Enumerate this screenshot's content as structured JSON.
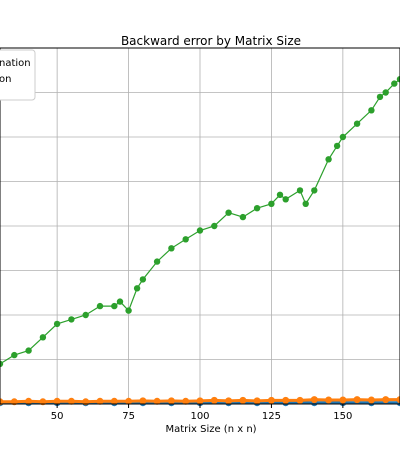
{
  "chart_data": {
    "type": "line",
    "title": "Backward error by Matrix Size",
    "xlabel": "Matrix Size (n x n)",
    "ylabel": "",
    "xlim": [
      30,
      170
    ],
    "ylim": [
      0,
      8
    ],
    "grid": true,
    "legend_placement": "top-left",
    "x_ticks": [
      50,
      75,
      100,
      125,
      150
    ],
    "series": [
      {
        "name": "nation",
        "color": "#1f77b4",
        "points": [
          [
            30,
            0.03
          ],
          [
            40,
            0.03
          ],
          [
            50,
            0.03
          ],
          [
            60,
            0.03
          ],
          [
            70,
            0.03
          ],
          [
            80,
            0.03
          ],
          [
            90,
            0.03
          ],
          [
            100,
            0.03
          ],
          [
            110,
            0.03
          ],
          [
            120,
            0.03
          ],
          [
            130,
            0.03
          ],
          [
            140,
            0.03
          ],
          [
            150,
            0.03
          ],
          [
            160,
            0.03
          ],
          [
            170,
            0.03
          ]
        ]
      },
      {
        "name": "on",
        "color": "#ff7f0e",
        "points": [
          [
            30,
            0.05
          ],
          [
            35,
            0.05
          ],
          [
            40,
            0.06
          ],
          [
            45,
            0.05
          ],
          [
            50,
            0.06
          ],
          [
            55,
            0.06
          ],
          [
            60,
            0.05
          ],
          [
            65,
            0.06
          ],
          [
            70,
            0.06
          ],
          [
            75,
            0.06
          ],
          [
            80,
            0.07
          ],
          [
            85,
            0.06
          ],
          [
            90,
            0.07
          ],
          [
            95,
            0.06
          ],
          [
            100,
            0.07
          ],
          [
            105,
            0.08
          ],
          [
            110,
            0.07
          ],
          [
            115,
            0.08
          ],
          [
            120,
            0.07
          ],
          [
            125,
            0.08
          ],
          [
            130,
            0.08
          ],
          [
            135,
            0.08
          ],
          [
            140,
            0.1
          ],
          [
            145,
            0.09
          ],
          [
            150,
            0.09
          ],
          [
            155,
            0.1
          ],
          [
            160,
            0.09
          ],
          [
            165,
            0.1
          ],
          [
            170,
            0.1
          ]
        ]
      },
      {
        "name": "",
        "color": "#2ca02c",
        "points": [
          [
            30,
            0.9
          ],
          [
            35,
            1.1
          ],
          [
            40,
            1.2
          ],
          [
            45,
            1.5
          ],
          [
            50,
            1.8
          ],
          [
            55,
            1.9
          ],
          [
            60,
            2.0
          ],
          [
            65,
            2.2
          ],
          [
            70,
            2.2
          ],
          [
            72,
            2.3
          ],
          [
            75,
            2.1
          ],
          [
            78,
            2.6
          ],
          [
            80,
            2.8
          ],
          [
            85,
            3.2
          ],
          [
            90,
            3.5
          ],
          [
            95,
            3.7
          ],
          [
            100,
            3.9
          ],
          [
            105,
            4.0
          ],
          [
            110,
            4.3
          ],
          [
            115,
            4.2
          ],
          [
            120,
            4.4
          ],
          [
            125,
            4.5
          ],
          [
            128,
            4.7
          ],
          [
            130,
            4.6
          ],
          [
            135,
            4.8
          ],
          [
            137,
            4.5
          ],
          [
            140,
            4.8
          ],
          [
            145,
            5.5
          ],
          [
            148,
            5.8
          ],
          [
            150,
            6.0
          ],
          [
            155,
            6.3
          ],
          [
            160,
            6.6
          ],
          [
            163,
            6.9
          ],
          [
            165,
            7.0
          ],
          [
            168,
            7.2
          ],
          [
            170,
            7.3
          ]
        ]
      }
    ]
  }
}
